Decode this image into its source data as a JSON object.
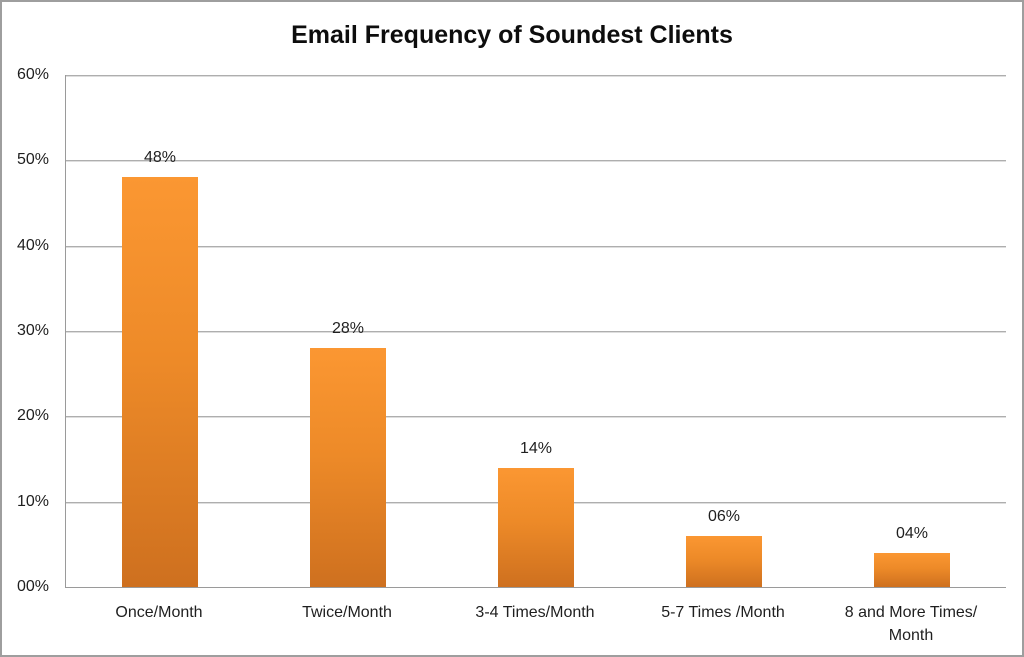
{
  "chart_data": {
    "type": "bar",
    "title": "Email Frequency of Soundest Clients",
    "categories": [
      "Once/Month",
      "Twice/Month",
      "3-4 Times/Month",
      "5-7 Times /Month",
      "8 and More Times/ Month"
    ],
    "values": [
      48,
      28,
      14,
      6,
      4
    ],
    "value_labels": [
      "48%",
      "28%",
      "14%",
      "06%",
      "04%"
    ],
    "y_tick_labels": [
      "60%",
      "50%",
      "40%",
      "30%",
      "20%",
      "10%",
      "00%"
    ],
    "ylim": [
      0,
      60
    ],
    "xlabel": "",
    "ylabel": "",
    "grid": true,
    "legend_position": "none",
    "colors": {
      "bar_gradient_top": "#FB9732",
      "bar_gradient_bottom": "#CE701F",
      "gridline": "#AEAEAE",
      "axis_line": "#9A9A9A",
      "outer_border": "#9E9E9E",
      "text": "#1F1F1F",
      "title_text": "#0D0D0D",
      "background": "#FFFFFF"
    }
  }
}
